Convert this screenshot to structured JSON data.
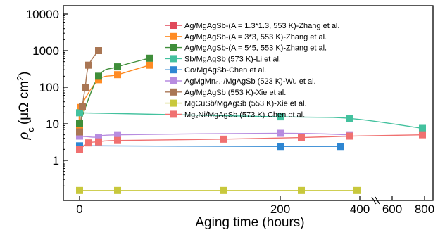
{
  "chart_data": {
    "type": "scatter",
    "xlabel": "Aging time (hours)",
    "ylabel_symbol": "ρ",
    "ylabel_subscript": "c",
    "ylabel_units": "(μΩ cm",
    "ylabel_units_sup": "2",
    "ylabel_close": ")",
    "y_scale": "log",
    "ylim": [
      0.1,
      10000
    ],
    "y_ticks": [
      "1",
      "10",
      "100",
      "1000",
      "10000"
    ],
    "y_tick_values": [
      1,
      10,
      100,
      1000,
      10000
    ],
    "x_scale": "broken",
    "x_segments": [
      [
        0,
        400
      ],
      [
        500,
        800
      ]
    ],
    "x_ticks": [
      "0",
      "200",
      "400",
      "600",
      "800"
    ],
    "x_tick_values": [
      0,
      200,
      400,
      600,
      800
    ],
    "legend_position": "top-right",
    "grid": false,
    "series": [
      {
        "name": "Ag/MgAgSb-(A = 1.3*1.3, 553 K)-Zhang et al.",
        "color": "#e0495a",
        "show_in_plot": false,
        "x": [],
        "y": []
      },
      {
        "name": "Ag/MgAgSb-(A = 3*3, 553 K)-Zhang et al.",
        "color": "#ff8b24",
        "show_in_plot": true,
        "x": [
          0,
          10,
          36,
          60,
          96
        ],
        "y": [
          7,
          28,
          160,
          220,
          400
        ]
      },
      {
        "name": "Ag/MgAgSb-(A = 5*5, 553 K)-Zhang et al.",
        "color": "#3f8e3a",
        "show_in_plot": true,
        "x": [
          0,
          36,
          60,
          96
        ],
        "y": [
          10,
          200,
          360,
          620
        ]
      },
      {
        "name": "Sb/MgAgSb (573 K)-Li et al.",
        "color": "#43c19e",
        "show_in_plot": true,
        "x": [
          0,
          180,
          360,
          768
        ],
        "y": [
          20,
          15.5,
          14,
          7.5
        ]
      },
      {
        "name": "Co/MgAgSb-Chen et al.",
        "color": "#2e86d2",
        "show_in_plot": true,
        "x": [
          0,
          180,
          330
        ],
        "y": [
          2.5,
          2.4,
          2.4
        ]
      },
      {
        "name": "AgMgMn₀.₁/MgAgSb (523 K)-Wu et al.",
        "color": "#b78ce0",
        "show_in_plot": true,
        "x": [
          0,
          24,
          72,
          180,
          360
        ],
        "y": [
          4.6,
          4.3,
          5,
          5.5,
          5
        ]
      },
      {
        "name": "Ag/MgAgSb (553 K)-Xie et al.",
        "color": "#a97654",
        "show_in_plot": true,
        "x": [
          0,
          4,
          8,
          12,
          24
        ],
        "y": [
          6,
          30,
          100,
          400,
          1000
        ]
      },
      {
        "name": "MgCuSb/MgAgSb (553 K)-Xie et al.",
        "color": "#c8c83c",
        "show_in_plot": true,
        "x": [
          0,
          72,
          168,
          240,
          504
        ],
        "y": [
          0.15,
          0.15,
          0.15,
          0.15,
          0.15
        ]
      },
      {
        "name": "Mg₂Ni/MgAgSb (573 K)-Chen et al.",
        "color": "#f07070",
        "show_in_plot": true,
        "x": [
          0,
          12,
          36,
          72,
          168,
          240,
          360,
          768
        ],
        "y": [
          2,
          3,
          3.2,
          3.5,
          3.8,
          4.2,
          4.6,
          5
        ]
      }
    ]
  }
}
